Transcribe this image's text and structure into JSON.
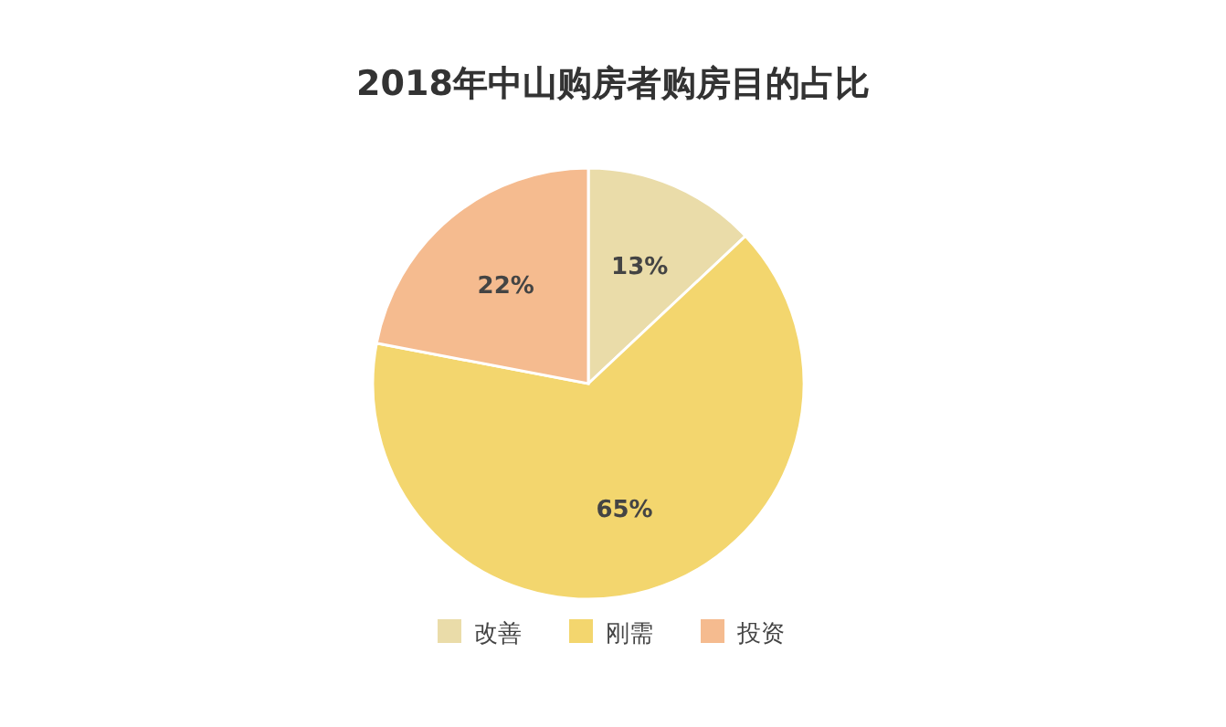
{
  "chart_data": {
    "type": "pie",
    "title": "2018年中山购房者购房目的占比",
    "categories": [
      "改善",
      "刚需",
      "投资"
    ],
    "values": [
      13,
      65,
      22
    ],
    "colors": [
      "#eadca9",
      "#f3d66e",
      "#f5bb8f"
    ],
    "value_labels": [
      "13%",
      "65%",
      "22%"
    ],
    "legend": "bottom"
  }
}
